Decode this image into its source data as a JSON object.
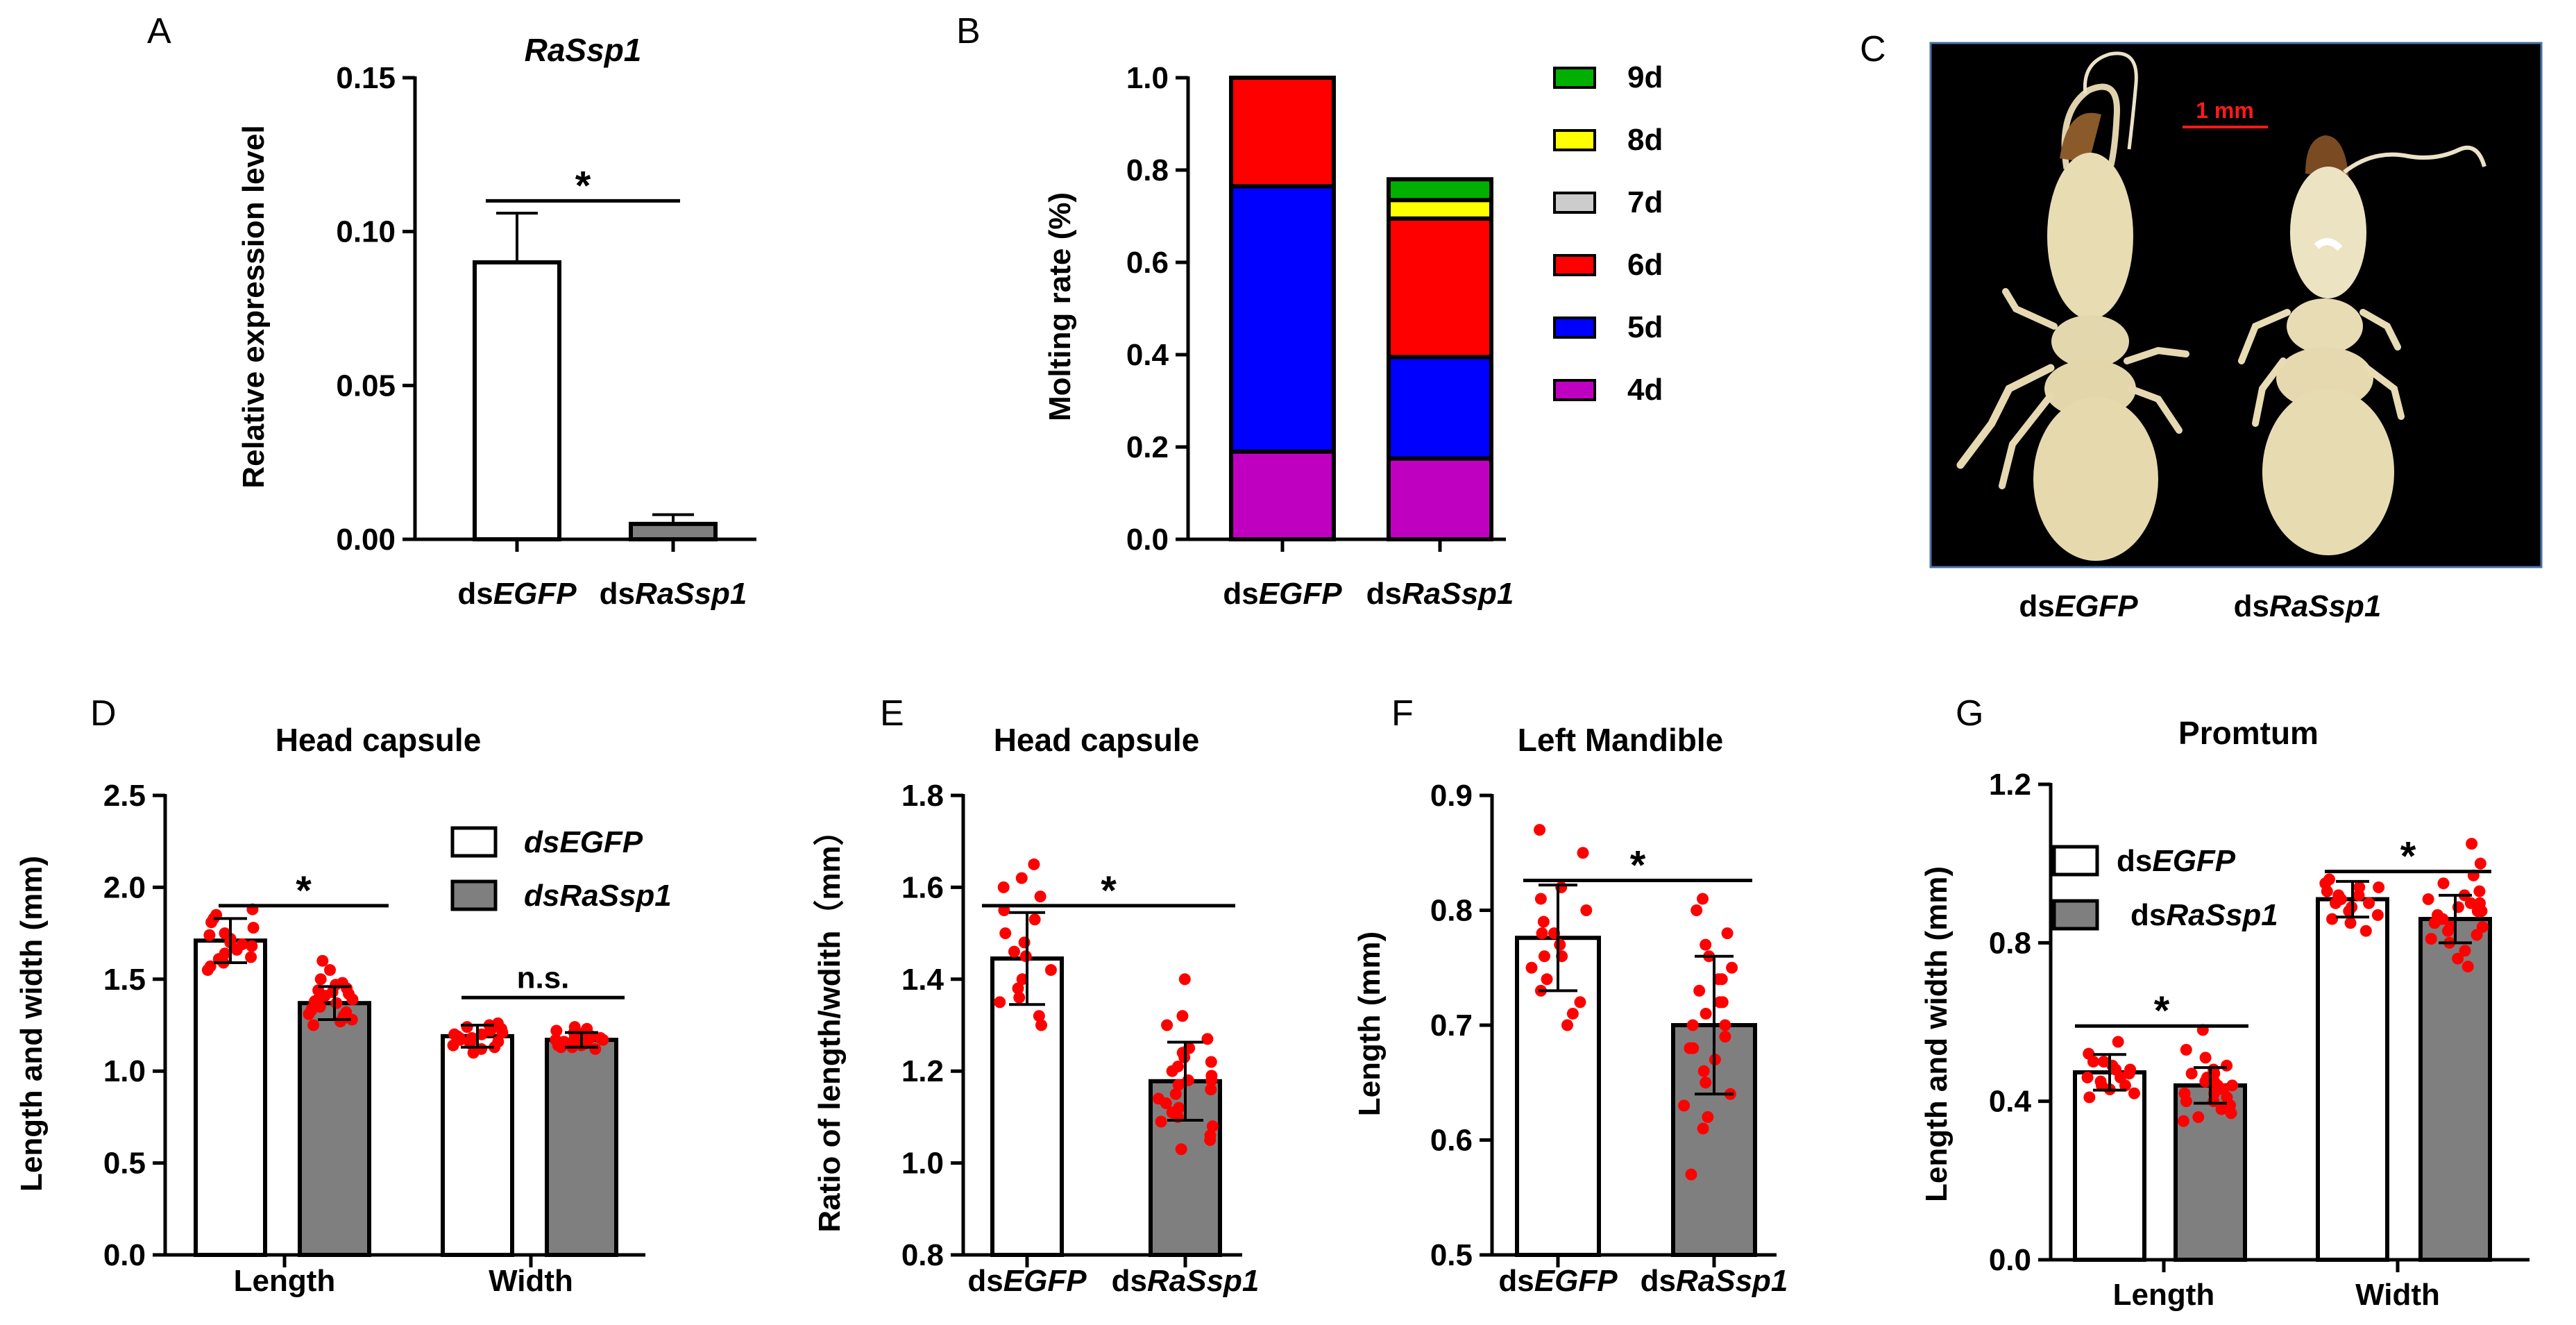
{
  "panels": {
    "A": "A",
    "B": "B",
    "C": "C",
    "D": "D",
    "E": "E",
    "F": "F",
    "G": "G"
  },
  "photo": {
    "scale_bar_label": "1 mm",
    "labels": [
      {
        "prefix": "ds",
        "gene": "EGFP"
      },
      {
        "prefix": "ds",
        "gene": "RaSsp1"
      }
    ]
  },
  "colors": {
    "white_bar": "#ffffff",
    "gray_bar": "#7f7f7f",
    "dot": "#ff0000",
    "purple_4d": "#c000c0",
    "blue_5d": "#0000ff",
    "red_6d": "#ff0000",
    "gray_7d": "#cccccc",
    "yellow_8d": "#ffff00",
    "green_9d": "#00b000",
    "photo_bg": "#000000",
    "photo_border": "#4a6fa5",
    "scale_bar": "#ff1a1a"
  },
  "chart_data": [
    {
      "panel": "A",
      "type": "bar",
      "title": "RaSsp1",
      "ylabel": "Relative expression level",
      "categories": [
        {
          "prefix": "ds",
          "gene": "EGFP"
        },
        {
          "prefix": "ds",
          "gene": "RaSsp1"
        }
      ],
      "values": [
        0.09,
        0.005
      ],
      "errors": [
        0.016,
        0.003
      ],
      "ylim": [
        0,
        0.15
      ],
      "yticks": [
        "0.00",
        "0.05",
        "0.10",
        "0.15"
      ],
      "yticks_values": [
        0,
        0.05,
        0.1,
        0.15
      ],
      "significance": [
        {
          "label": "*",
          "y": 0.11
        }
      ]
    },
    {
      "panel": "B",
      "type": "bar",
      "stacked": true,
      "ylabel": "Molting rate (%)",
      "categories": [
        {
          "prefix": "ds",
          "gene": "EGFP"
        },
        {
          "prefix": "ds",
          "gene": "RaSsp1"
        }
      ],
      "series": [
        {
          "name": "4d",
          "color": "#c000c0",
          "values": [
            0.19,
            0.175
          ]
        },
        {
          "name": "5d",
          "color": "#0000ff",
          "values": [
            0.575,
            0.22
          ]
        },
        {
          "name": "6d",
          "color": "#ff0000",
          "values": [
            0.235,
            0.3
          ]
        },
        {
          "name": "7d",
          "color": "#cccccc",
          "values": [
            0.0,
            0.0
          ]
        },
        {
          "name": "8d",
          "color": "#ffff00",
          "values": [
            0.0,
            0.04
          ]
        },
        {
          "name": "9d",
          "color": "#00b000",
          "values": [
            0.0,
            0.045
          ]
        }
      ],
      "legend_order": [
        "9d",
        "8d",
        "7d",
        "6d",
        "5d",
        "4d"
      ],
      "ylim": [
        0,
        1.0
      ],
      "yticks": [
        "0.0",
        "0.2",
        "0.4",
        "0.6",
        "0.8",
        "1.0"
      ],
      "yticks_values": [
        0,
        0.2,
        0.4,
        0.6,
        0.8,
        1.0
      ]
    },
    {
      "panel": "D",
      "type": "bar",
      "title": "Head capsule",
      "ylabel": "Length and width (mm)",
      "categories": [
        "Length",
        "Width"
      ],
      "series": [
        {
          "name": "dsEGFP",
          "values": [
            1.71,
            1.19
          ],
          "errors": [
            0.12,
            0.06
          ]
        },
        {
          "name": "dsRaSsp1",
          "values": [
            1.37,
            1.17
          ],
          "errors": [
            0.09,
            0.04
          ]
        }
      ],
      "legend": [
        {
          "prefix": "ds",
          "gene": "EGFP",
          "italic_all": true
        },
        {
          "prefix": "ds",
          "gene": "RaSsp1",
          "italic_all": true
        }
      ],
      "ylim": [
        0,
        2.5
      ],
      "yticks": [
        "0.0",
        "0.5",
        "1.0",
        "1.5",
        "2.0",
        "2.5"
      ],
      "yticks_values": [
        0,
        0.5,
        1.0,
        1.5,
        2.0,
        2.5
      ],
      "significance": [
        {
          "label": "*",
          "y": 1.9,
          "group": 0
        },
        {
          "label": "n.s.",
          "y": 1.4,
          "group": 1
        }
      ],
      "points": [
        [
          1.62,
          1.88,
          1.55,
          1.75,
          1.68,
          1.81,
          1.59,
          1.72,
          1.66,
          1.85,
          1.57,
          1.78,
          1.64,
          1.83,
          1.7,
          1.61,
          1.74,
          1.69
        ],
        [
          1.38,
          1.28,
          1.45,
          1.33,
          1.5,
          1.25,
          1.42,
          1.35,
          1.47,
          1.3,
          1.4,
          1.55,
          1.36,
          1.27,
          1.44,
          1.32,
          1.39,
          1.6,
          1.29,
          1.41,
          1.34,
          1.37,
          1.43,
          1.31,
          1.48
        ],
        [
          1.15,
          1.22,
          1.18,
          1.25,
          1.12,
          1.2,
          1.17,
          1.23,
          1.1,
          1.19,
          1.24,
          1.16,
          1.21,
          1.14,
          1.26,
          1.18,
          1.2,
          1.13
        ],
        [
          1.16,
          1.18,
          1.14,
          1.2,
          1.17,
          1.22,
          1.15,
          1.19,
          1.13,
          1.21,
          1.16,
          1.18,
          1.12,
          1.2,
          1.17,
          1.23,
          1.15,
          1.19,
          1.14,
          1.21,
          1.16,
          1.18,
          1.17,
          1.24,
          1.13
        ]
      ]
    },
    {
      "panel": "E",
      "type": "bar",
      "title": "Head capsule",
      "ylabel": "Ratio of length/wdith（mm）",
      "categories": [
        {
          "prefix": "ds",
          "gene": "EGFP"
        },
        {
          "prefix": "ds",
          "gene": "RaSsp1"
        }
      ],
      "values": [
        1.445,
        1.178
      ],
      "errors": [
        0.1,
        0.085
      ],
      "ylim": [
        0.8,
        1.8
      ],
      "yticks": [
        "0.8",
        "1.0",
        "1.2",
        "1.4",
        "1.6",
        "1.8"
      ],
      "yticks_values": [
        0.8,
        1.0,
        1.2,
        1.4,
        1.6,
        1.8
      ],
      "significance": [
        {
          "label": "*",
          "y": 1.56
        }
      ],
      "points": [
        [
          1.65,
          1.55,
          1.62,
          1.5,
          1.45,
          1.4,
          1.35,
          1.3,
          1.48,
          1.58,
          1.38,
          1.42,
          1.32,
          1.53,
          1.46,
          1.36,
          1.6
        ],
        [
          1.4,
          1.3,
          1.25,
          1.22,
          1.2,
          1.18,
          1.15,
          1.12,
          1.1,
          1.08,
          1.05,
          1.03,
          1.17,
          1.21,
          1.13,
          1.27,
          1.09,
          1.16,
          1.19,
          1.24,
          1.11,
          1.14,
          1.06,
          1.23,
          1.32,
          1.18
        ]
      ]
    },
    {
      "panel": "F",
      "type": "bar",
      "title": "Left Mandible",
      "ylabel": "Length (mm)",
      "categories": [
        {
          "prefix": "ds",
          "gene": "EGFP"
        },
        {
          "prefix": "ds",
          "gene": "RaSsp1"
        }
      ],
      "values": [
        0.776,
        0.7
      ],
      "errors": [
        0.046,
        0.06
      ],
      "ylim": [
        0.5,
        0.9
      ],
      "yticks": [
        "0.5",
        "0.6",
        "0.7",
        "0.8",
        "0.9"
      ],
      "yticks_values": [
        0.5,
        0.6,
        0.7,
        0.8,
        0.9
      ],
      "significance": [
        {
          "label": "*",
          "y": 0.826
        }
      ],
      "points": [
        [
          0.87,
          0.85,
          0.82,
          0.8,
          0.79,
          0.78,
          0.77,
          0.76,
          0.75,
          0.74,
          0.73,
          0.72,
          0.71,
          0.7,
          0.78,
          0.81,
          0.76
        ],
        [
          0.81,
          0.8,
          0.78,
          0.77,
          0.76,
          0.75,
          0.74,
          0.73,
          0.72,
          0.71,
          0.7,
          0.69,
          0.68,
          0.67,
          0.66,
          0.65,
          0.64,
          0.63,
          0.62,
          0.61,
          0.57,
          0.7,
          0.72,
          0.68,
          0.74
        ]
      ]
    },
    {
      "panel": "G",
      "type": "bar",
      "title": "Promtum",
      "ylabel": "Length and width (mm)",
      "categories": [
        "Length",
        "Width"
      ],
      "series": [
        {
          "name": "dsEGFP",
          "values": [
            0.473,
            0.91
          ],
          "errors": [
            0.045,
            0.045
          ]
        },
        {
          "name": "dsRaSsp1",
          "values": [
            0.44,
            0.86
          ],
          "errors": [
            0.045,
            0.06
          ]
        }
      ],
      "legend": [
        {
          "prefix": "ds",
          "gene": "EGFP",
          "italic_all": false
        },
        {
          "prefix": "ds",
          "gene": "RaSsp1",
          "italic_all": false
        }
      ],
      "ylim": [
        0,
        1.2
      ],
      "yticks": [
        "0.0",
        "0.4",
        "0.8",
        "1.2"
      ],
      "yticks_values": [
        0,
        0.4,
        0.8,
        1.2
      ],
      "significance": [
        {
          "label": "*",
          "y": 0.59,
          "group": 0
        },
        {
          "label": "*",
          "y": 0.98,
          "group": 1
        }
      ],
      "points": [
        [
          0.55,
          0.52,
          0.5,
          0.49,
          0.48,
          0.47,
          0.46,
          0.45,
          0.44,
          0.43,
          0.42,
          0.41,
          0.5,
          0.46,
          0.48,
          0.44
        ],
        [
          0.58,
          0.53,
          0.51,
          0.49,
          0.48,
          0.47,
          0.46,
          0.45,
          0.44,
          0.43,
          0.42,
          0.41,
          0.4,
          0.39,
          0.38,
          0.37,
          0.36,
          0.35,
          0.45,
          0.43,
          0.47,
          0.42,
          0.44,
          0.4
        ],
        [
          0.96,
          0.95,
          0.94,
          0.93,
          0.92,
          0.91,
          0.9,
          0.89,
          0.88,
          0.87,
          0.86,
          0.85,
          0.83,
          0.92,
          0.9,
          0.94
        ],
        [
          1.05,
          1.0,
          0.97,
          0.95,
          0.93,
          0.91,
          0.9,
          0.89,
          0.88,
          0.87,
          0.86,
          0.85,
          0.84,
          0.83,
          0.82,
          0.81,
          0.8,
          0.78,
          0.76,
          0.74,
          0.88,
          0.86,
          0.9,
          0.84,
          0.92
        ]
      ]
    }
  ]
}
